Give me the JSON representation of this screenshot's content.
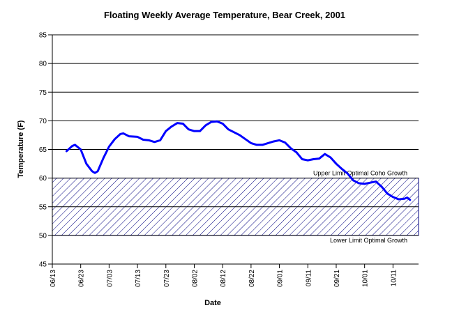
{
  "chart_data": {
    "type": "line",
    "title": "Floating Weekly Average Temperature, Bear Creek, 2001",
    "xlabel": "Date",
    "ylabel": "Temperature (F)",
    "x": [
      "06/18",
      "06/20",
      "06/21",
      "06/23",
      "06/25",
      "06/27",
      "06/28",
      "06/29",
      "07/01",
      "07/03",
      "07/05",
      "07/07",
      "07/08",
      "07/10",
      "07/13",
      "07/15",
      "07/17",
      "07/19",
      "07/21",
      "07/23",
      "07/25",
      "07/27",
      "07/29",
      "07/31",
      "08/02",
      "08/04",
      "08/06",
      "08/08",
      "08/10",
      "08/12",
      "08/14",
      "08/16",
      "08/18",
      "08/20",
      "08/22",
      "08/24",
      "08/26",
      "08/28",
      "08/30",
      "09/01",
      "09/03",
      "09/05",
      "09/07",
      "09/09",
      "09/11",
      "09/13",
      "09/15",
      "09/17",
      "09/19",
      "09/21",
      "09/23",
      "09/25",
      "09/27",
      "09/29",
      "10/01",
      "10/03",
      "10/05",
      "10/07",
      "10/09",
      "10/11",
      "10/13",
      "10/15",
      "10/16",
      "10/17"
    ],
    "series": [
      {
        "name": "Temperature",
        "color": "#0000ff",
        "values": [
          64.7,
          65.6,
          65.8,
          65.0,
          62.5,
          61.2,
          60.9,
          61.2,
          63.5,
          65.5,
          66.8,
          67.7,
          67.8,
          67.3,
          67.2,
          66.7,
          66.6,
          66.3,
          66.6,
          68.2,
          69.0,
          69.6,
          69.5,
          68.5,
          68.2,
          68.2,
          69.2,
          69.8,
          69.9,
          69.5,
          68.5,
          68.0,
          67.5,
          66.8,
          66.1,
          65.8,
          65.8,
          66.1,
          66.4,
          66.6,
          66.2,
          65.2,
          64.5,
          63.3,
          63.1,
          63.3,
          63.4,
          64.2,
          63.6,
          62.5,
          61.6,
          60.8,
          59.6,
          59.1,
          59.0,
          59.2,
          59.4,
          58.5,
          57.3,
          56.7,
          56.3,
          56.4,
          56.6,
          56.2
        ]
      }
    ],
    "band": {
      "lower": 50,
      "upper": 60,
      "color": "#000080"
    },
    "annotations": [
      {
        "text": "Upper Limit Optimal Coho Growth",
        "y": 60
      },
      {
        "text": "Lower Limit Optimal Growth",
        "y": 50
      }
    ],
    "xlim": [
      "06/13",
      "10/20"
    ],
    "xticks": [
      "06/13",
      "06/23",
      "07/03",
      "07/13",
      "07/23",
      "08/02",
      "08/12",
      "08/22",
      "09/01",
      "09/11",
      "09/21",
      "10/01",
      "10/11"
    ],
    "ylim": [
      45,
      85
    ],
    "yticks": [
      45,
      50,
      55,
      60,
      65,
      70,
      75,
      80,
      85
    ],
    "grid": true
  }
}
